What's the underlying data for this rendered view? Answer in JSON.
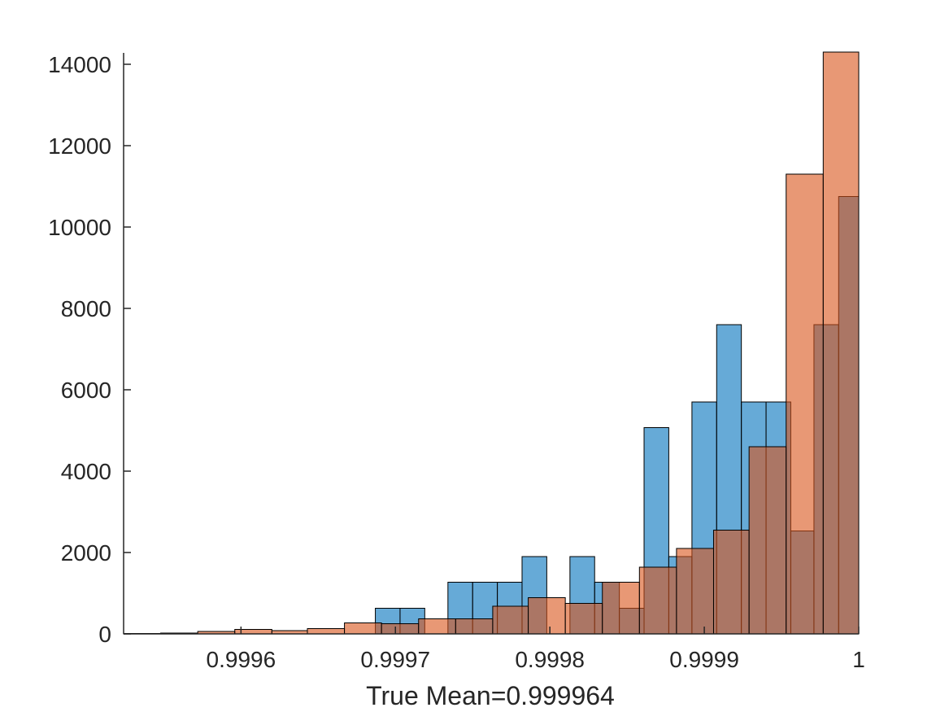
{
  "chart_data": {
    "type": "bar",
    "xlabel": "True Mean=0.999964",
    "ylabel": "",
    "title": "",
    "xlim": [
      0.999524,
      1.0
    ],
    "ylim": [
      0,
      14000
    ],
    "x_ticks": [
      0.9996,
      0.9997,
      0.9998,
      0.9999,
      1.0
    ],
    "x_tick_labels": [
      "0.9996",
      "0.9997",
      "0.9998",
      "0.9999",
      "1"
    ],
    "y_ticks": [
      0,
      2000,
      4000,
      6000,
      8000,
      10000,
      12000,
      14000
    ],
    "y_tick_labels": [
      "0",
      "2000",
      "4000",
      "6000",
      "8000",
      "10000",
      "12000",
      "14000"
    ],
    "grid": false,
    "colors": {
      "series_1": "#0072BD",
      "series_2": "#D95319",
      "edge": "#000000",
      "axis": "#262626"
    },
    "series": [
      {
        "bin_width": 1.58e-05,
        "bins": [
          {
            "x0": 0.999687,
            "x1": 0.999703,
            "value": 630
          },
          {
            "x0": 0.999703,
            "x1": 0.999719,
            "value": 630
          },
          {
            "x0": 0.999734,
            "x1": 0.99975,
            "value": 1270
          },
          {
            "x0": 0.99975,
            "x1": 0.999766,
            "value": 1270
          },
          {
            "x0": 0.999766,
            "x1": 0.999782,
            "value": 1270
          },
          {
            "x0": 0.999782,
            "x1": 0.999798,
            "value": 1900
          },
          {
            "x0": 0.999813,
            "x1": 0.999829,
            "value": 1900
          },
          {
            "x0": 0.999829,
            "x1": 0.999845,
            "value": 1270
          },
          {
            "x0": 0.999845,
            "x1": 0.999861,
            "value": 630
          },
          {
            "x0": 0.999861,
            "x1": 0.999877,
            "value": 5070
          },
          {
            "x0": 0.999877,
            "x1": 0.999892,
            "value": 1900
          },
          {
            "x0": 0.999892,
            "x1": 0.999908,
            "value": 5700
          },
          {
            "x0": 0.999908,
            "x1": 0.999924,
            "value": 7600
          },
          {
            "x0": 0.999924,
            "x1": 0.99994,
            "value": 5700
          },
          {
            "x0": 0.99994,
            "x1": 0.999956,
            "value": 5700
          },
          {
            "x0": 0.999956,
            "x1": 0.999971,
            "value": 2530
          },
          {
            "x0": 0.999971,
            "x1": 0.999987,
            "value": 7600
          },
          {
            "x0": 0.999987,
            "x1": 1.000003,
            "value": 10750
          }
        ]
      },
      {
        "bin_width": 2.39e-05,
        "bins": [
          {
            "x0": 0.999524,
            "x1": 0.999548,
            "value": 10
          },
          {
            "x0": 0.999548,
            "x1": 0.999572,
            "value": 20
          },
          {
            "x0": 0.999572,
            "x1": 0.999596,
            "value": 60
          },
          {
            "x0": 0.999596,
            "x1": 0.99962,
            "value": 110
          },
          {
            "x0": 0.99962,
            "x1": 0.999643,
            "value": 80
          },
          {
            "x0": 0.999643,
            "x1": 0.999667,
            "value": 130
          },
          {
            "x0": 0.999667,
            "x1": 0.999691,
            "value": 270
          },
          {
            "x0": 0.999691,
            "x1": 0.999715,
            "value": 250
          },
          {
            "x0": 0.999715,
            "x1": 0.999739,
            "value": 370
          },
          {
            "x0": 0.999739,
            "x1": 0.999763,
            "value": 370
          },
          {
            "x0": 0.999763,
            "x1": 0.999786,
            "value": 680
          },
          {
            "x0": 0.999786,
            "x1": 0.99981,
            "value": 890
          },
          {
            "x0": 0.99981,
            "x1": 0.999834,
            "value": 750
          },
          {
            "x0": 0.999834,
            "x1": 0.999858,
            "value": 1270
          },
          {
            "x0": 0.999858,
            "x1": 0.999882,
            "value": 1640
          },
          {
            "x0": 0.999882,
            "x1": 0.999906,
            "value": 2100
          },
          {
            "x0": 0.999906,
            "x1": 0.999929,
            "value": 2550
          },
          {
            "x0": 0.999929,
            "x1": 0.999953,
            "value": 4600
          },
          {
            "x0": 0.999953,
            "x1": 0.999977,
            "value": 11300
          },
          {
            "x0": 0.999977,
            "x1": 1.0,
            "value": 14300
          }
        ]
      }
    ]
  }
}
